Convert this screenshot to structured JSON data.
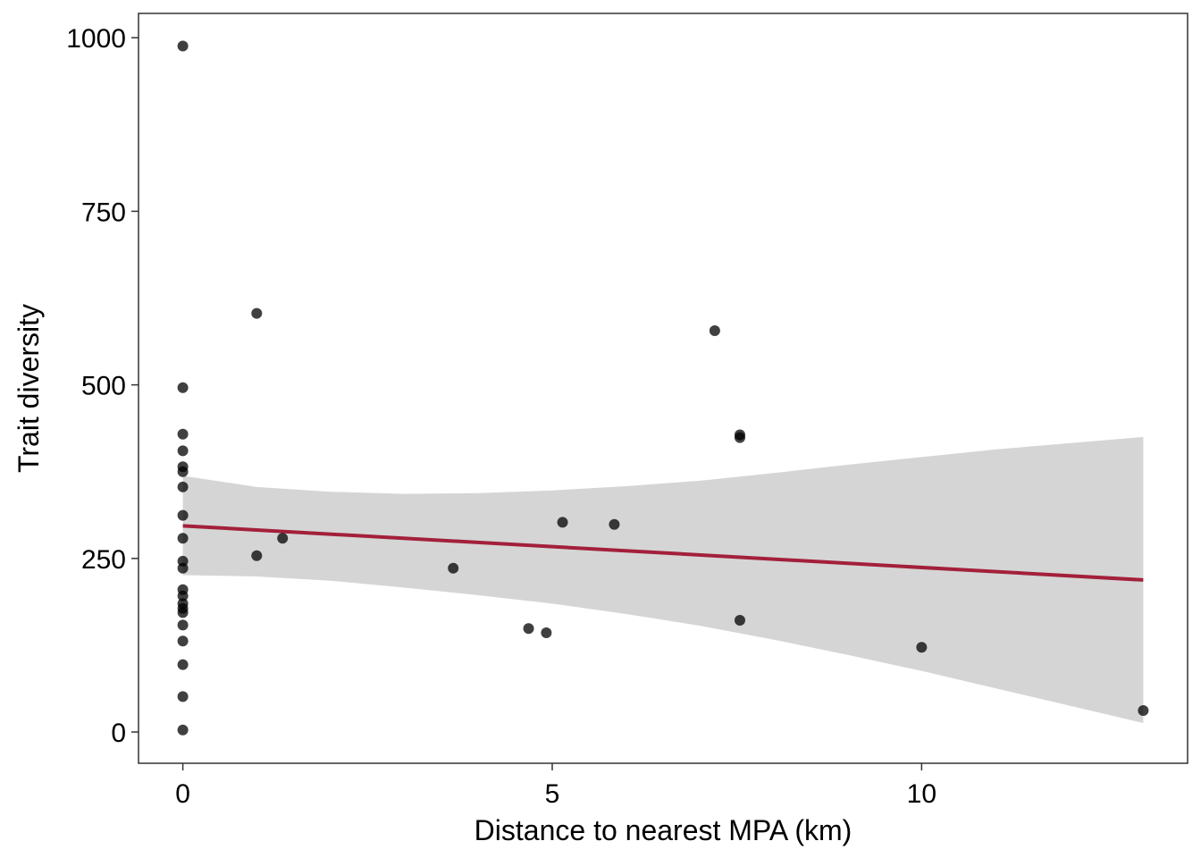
{
  "chart_data": {
    "type": "scatter",
    "title": "",
    "xlabel": "Distance to nearest MPA (km)",
    "ylabel": "Trait diversity",
    "xlim": [
      -0.6,
      13.6
    ],
    "ylim": [
      -45,
      1035
    ],
    "x_ticks": [
      0,
      5,
      10
    ],
    "y_ticks": [
      0,
      250,
      500,
      750,
      1000
    ],
    "grid": false,
    "legend": "none",
    "colors": {
      "points": "#000000",
      "fit_line": "#a3203a",
      "confidence_band": "#d5d5d5",
      "panel_border": "#333333"
    },
    "points": [
      {
        "x": 0,
        "y": 988
      },
      {
        "x": 0,
        "y": 496
      },
      {
        "x": 0,
        "y": 429
      },
      {
        "x": 0,
        "y": 405
      },
      {
        "x": 0,
        "y": 382
      },
      {
        "x": 0,
        "y": 375
      },
      {
        "x": 0,
        "y": 353
      },
      {
        "x": 0,
        "y": 312
      },
      {
        "x": 0,
        "y": 279
      },
      {
        "x": 0,
        "y": 246
      },
      {
        "x": 0,
        "y": 236
      },
      {
        "x": 0,
        "y": 205
      },
      {
        "x": 0,
        "y": 196
      },
      {
        "x": 0,
        "y": 185
      },
      {
        "x": 0,
        "y": 178
      },
      {
        "x": 0,
        "y": 172
      },
      {
        "x": 0,
        "y": 154
      },
      {
        "x": 0,
        "y": 131
      },
      {
        "x": 0,
        "y": 97
      },
      {
        "x": 0,
        "y": 51
      },
      {
        "x": 0,
        "y": 3
      },
      {
        "x": 1.0,
        "y": 603
      },
      {
        "x": 1.0,
        "y": 254
      },
      {
        "x": 1.35,
        "y": 279
      },
      {
        "x": 3.66,
        "y": 236
      },
      {
        "x": 4.68,
        "y": 149
      },
      {
        "x": 4.92,
        "y": 143
      },
      {
        "x": 5.14,
        "y": 302
      },
      {
        "x": 5.84,
        "y": 299
      },
      {
        "x": 7.2,
        "y": 578
      },
      {
        "x": 7.54,
        "y": 428
      },
      {
        "x": 7.54,
        "y": 424
      },
      {
        "x": 7.54,
        "y": 161
      },
      {
        "x": 10.0,
        "y": 122
      },
      {
        "x": 13.0,
        "y": 31
      }
    ],
    "fit_line": {
      "x": [
        0,
        13.0
      ],
      "y": [
        297,
        219
      ]
    },
    "confidence_band": {
      "x": [
        0,
        1,
        2,
        3,
        4,
        5,
        6,
        7,
        8,
        9,
        10,
        11,
        12,
        13.0
      ],
      "lower": [
        226,
        224,
        218,
        208,
        197,
        185,
        170,
        153,
        133,
        111,
        88,
        63,
        38,
        13
      ],
      "upper": [
        369,
        353,
        346,
        343,
        344,
        348,
        354,
        362,
        373,
        385,
        396,
        407,
        416,
        425
      ]
    }
  }
}
